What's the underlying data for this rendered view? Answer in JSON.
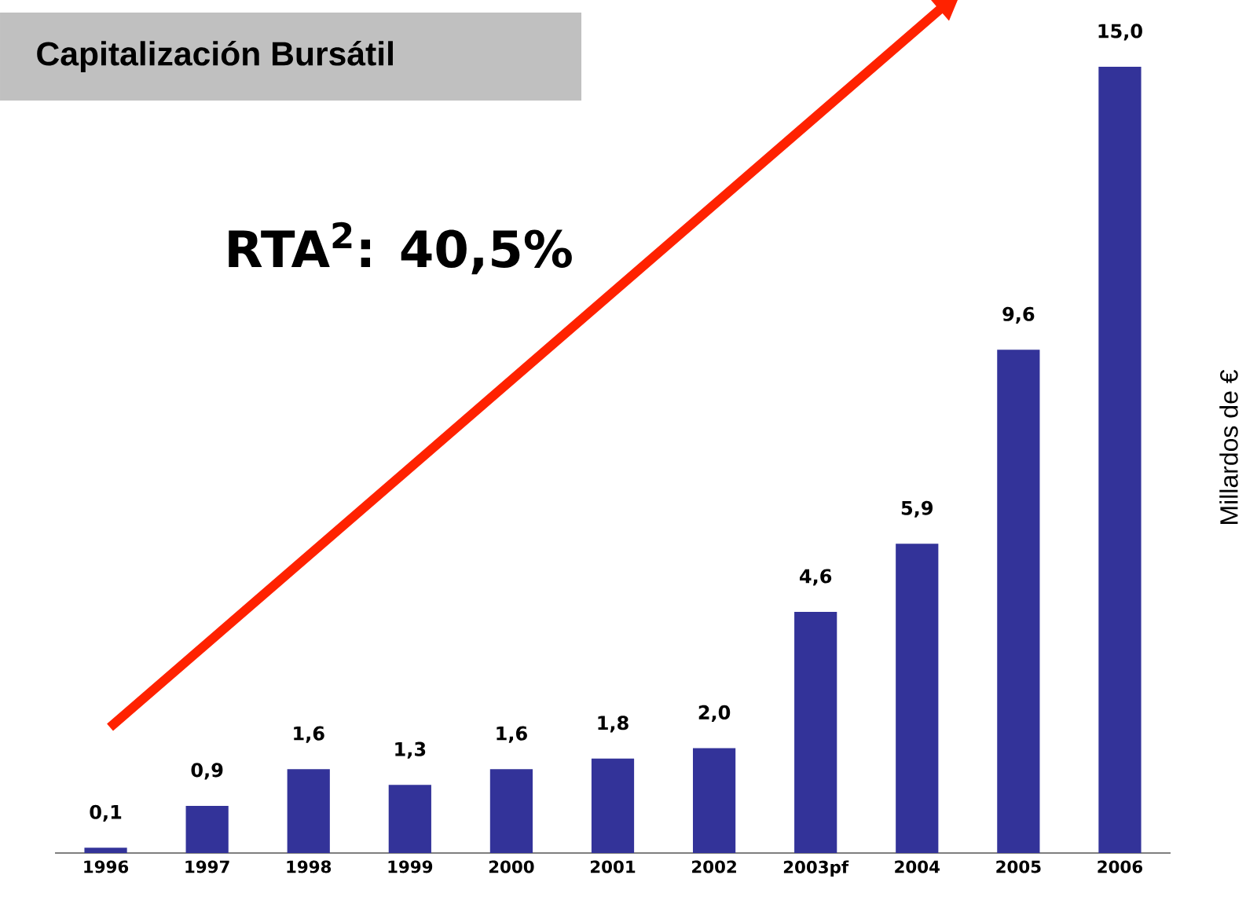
{
  "chart_data": {
    "type": "bar",
    "title": "Capitalización Bursátil",
    "ylabel": "Millardos de €",
    "annotations": [
      "RTA$^{2}$: 40,5%"
    ],
    "categories": [
      "1996",
      "1997",
      "1998",
      "1999",
      "2000",
      "2001",
      "2002",
      "2003pf",
      "2004",
      "2005",
      "2006"
    ],
    "values": [
      0.1,
      0.9,
      1.6,
      1.3,
      1.6,
      1.8,
      2.0,
      4.6,
      5.9,
      9.6,
      15.0
    ],
    "value_labels": [
      "0,1",
      "0,9",
      "1,6",
      "1,3",
      "1,6",
      "1,8",
      "2,0",
      "4,6",
      "5,9",
      "9,6",
      "15,0"
    ],
    "color": "#333399"
  }
}
